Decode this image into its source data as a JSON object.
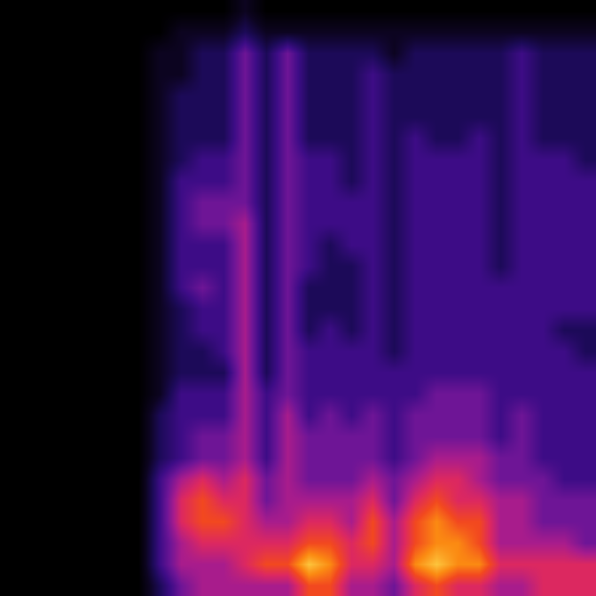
{
  "chart_data": {
    "type": "heatmap",
    "tick_labels": false,
    "zlim": [
      0,
      10
    ],
    "cells": [
      [
        0,
        0,
        0,
        0,
        0,
        0,
        0,
        0,
        0,
        0,
        0,
        0,
        0,
        0,
        0,
        0,
        0,
        0,
        0,
        0,
        0,
        0,
        0,
        0,
        0,
        0,
        0,
        0
      ],
      [
        0,
        0,
        0,
        0,
        0,
        0,
        0,
        0,
        0,
        0,
        0,
        0,
        0,
        0,
        0,
        0,
        0,
        0,
        0,
        0,
        0,
        0,
        0,
        0,
        0,
        0,
        0,
        0
      ],
      [
        0,
        0,
        0,
        0,
        0,
        0,
        0,
        0,
        0,
        0,
        0,
        0,
        0,
        0,
        0,
        0,
        0,
        0,
        0,
        0,
        0,
        0,
        0,
        0,
        0,
        0,
        0,
        0
      ],
      [
        0,
        0,
        0,
        0,
        0,
        0,
        0,
        0,
        0,
        0,
        0,
        0,
        0,
        0,
        0,
        0,
        0,
        0,
        0,
        0,
        0,
        0,
        0,
        0,
        0,
        0,
        0,
        0
      ],
      [
        0,
        0,
        0,
        0,
        0,
        0,
        0,
        0,
        0,
        0,
        0,
        0,
        0,
        0,
        0,
        0,
        0,
        0,
        0,
        0,
        0,
        0,
        0,
        0,
        0,
        0,
        0,
        0
      ],
      [
        0,
        0,
        0,
        0,
        0,
        0,
        0,
        0,
        0,
        0,
        0,
        0,
        0,
        0,
        0,
        0,
        0,
        0,
        0,
        0,
        0,
        0,
        0,
        0,
        0,
        0,
        0,
        0
      ],
      [
        0,
        0,
        0,
        0,
        0,
        0,
        0,
        0,
        0,
        0,
        0,
        0,
        0,
        0,
        0,
        0,
        0,
        0,
        0,
        0,
        0,
        0,
        0,
        0,
        0,
        0,
        0,
        0
      ],
      [
        0,
        0,
        1,
        1,
        1,
        1,
        1,
        1,
        1,
        1,
        1,
        1,
        1,
        1,
        1,
        1,
        1,
        1,
        1,
        2,
        2,
        2,
        3,
        3,
        3,
        3,
        3,
        2
      ],
      [
        0,
        1,
        1,
        1,
        2,
        2,
        2,
        2,
        3,
        3,
        3,
        3,
        3,
        3,
        2,
        2,
        2,
        2,
        3,
        3,
        3,
        3,
        5,
        6,
        6,
        5,
        5,
        4
      ],
      [
        0,
        1,
        2,
        2,
        2,
        2,
        2,
        3,
        3,
        4,
        4,
        3,
        3,
        4,
        3,
        3,
        2,
        2,
        3,
        3,
        4,
        4,
        6,
        7,
        7,
        6,
        5,
        5
      ],
      [
        0,
        1,
        2,
        2,
        2,
        2,
        2,
        3,
        3,
        4,
        4,
        3,
        3,
        3,
        3,
        3,
        3,
        2,
        3,
        3,
        4,
        4,
        5,
        6,
        7,
        6,
        5,
        5
      ],
      [
        1,
        2,
        4,
        4,
        4,
        4,
        4,
        4,
        4,
        4,
        5,
        5,
        5,
        5,
        5,
        5,
        5,
        5,
        5,
        5,
        5,
        5,
        6,
        6,
        6,
        6,
        6,
        5
      ],
      [
        0,
        1,
        2,
        2,
        2,
        2,
        2,
        2,
        2,
        2,
        2,
        2,
        2,
        2,
        2,
        2,
        2,
        2,
        3,
        3,
        3,
        3,
        4,
        4,
        5,
        6,
        7,
        5
      ],
      [
        0,
        1,
        4,
        4,
        4,
        4,
        4,
        4,
        4,
        4,
        4,
        4,
        4,
        4,
        4,
        4,
        4,
        4,
        4,
        5,
        5,
        5,
        5,
        5,
        5,
        6,
        7,
        5
      ],
      [
        0,
        1,
        2,
        2,
        2,
        2,
        2,
        3,
        3,
        3,
        3,
        3,
        3,
        2,
        2,
        2,
        3,
        3,
        3,
        3,
        4,
        4,
        4,
        5,
        6,
        7,
        9,
        7
      ],
      [
        0,
        1,
        2,
        2,
        2,
        2,
        2,
        3,
        3,
        3,
        3,
        2,
        2,
        2,
        2,
        3,
        3,
        3,
        3,
        4,
        4,
        4,
        4,
        5,
        6,
        7,
        8,
        7
      ],
      [
        0,
        1,
        2,
        2,
        2,
        2,
        2,
        2,
        2,
        3,
        3,
        3,
        2,
        2,
        2,
        2,
        3,
        3,
        3,
        3,
        4,
        4,
        4,
        5,
        5,
        6,
        6,
        5
      ],
      [
        0,
        1,
        2,
        3,
        3,
        3,
        3,
        3,
        3,
        3,
        3,
        3,
        3,
        3,
        3,
        3,
        3,
        3,
        3,
        4,
        4,
        4,
        5,
        6,
        7,
        7,
        6,
        5
      ],
      [
        0,
        1,
        1,
        2,
        2,
        2,
        2,
        2,
        2,
        2,
        2,
        2,
        2,
        2,
        2,
        2,
        2,
        3,
        3,
        3,
        3,
        3,
        4,
        4,
        5,
        5,
        5,
        4
      ],
      [
        0,
        1,
        2,
        2,
        2,
        2,
        3,
        3,
        3,
        3,
        3,
        3,
        3,
        3,
        3,
        3,
        3,
        3,
        3,
        4,
        4,
        4,
        5,
        6,
        7,
        7,
        8,
        6
      ],
      [
        0,
        1,
        2,
        2,
        2,
        2,
        2,
        3,
        3,
        3,
        3,
        3,
        3,
        3,
        3,
        3,
        3,
        3,
        4,
        4,
        4,
        5,
        6,
        7,
        8,
        8,
        9,
        7
      ],
      [
        0,
        1,
        2,
        2,
        2,
        2,
        2,
        3,
        3,
        3,
        3,
        3,
        3,
        3,
        3,
        3,
        3,
        3,
        4,
        4,
        4,
        5,
        6,
        6,
        7,
        8,
        8,
        6
      ],
      [
        0,
        1,
        2,
        2,
        2,
        2,
        3,
        3,
        3,
        3,
        3,
        3,
        3,
        3,
        3,
        3,
        3,
        3,
        4,
        4,
        4,
        5,
        5,
        6,
        7,
        7,
        8,
        6
      ],
      [
        0,
        1,
        2,
        2,
        2,
        2,
        2,
        2,
        2,
        2,
        2,
        2,
        2,
        3,
        3,
        3,
        3,
        3,
        3,
        3,
        3,
        4,
        4,
        5,
        5,
        5,
        6,
        5
      ],
      [
        0,
        1,
        3,
        3,
        3,
        3,
        3,
        3,
        3,
        3,
        3,
        3,
        3,
        3,
        3,
        3,
        3,
        3,
        3,
        4,
        4,
        4,
        4,
        5,
        5,
        5,
        6,
        5
      ],
      [
        0,
        1,
        2,
        2,
        2,
        2,
        2,
        3,
        3,
        3,
        3,
        3,
        3,
        3,
        3,
        3,
        3,
        3,
        3,
        3,
        3,
        3,
        4,
        4,
        4,
        5,
        6,
        6
      ],
      [
        0,
        1,
        2,
        2,
        2,
        2,
        2,
        3,
        3,
        3,
        3,
        3,
        3,
        3,
        3,
        2,
        3,
        3,
        3,
        3,
        3,
        3,
        3,
        4,
        4,
        5,
        6,
        6
      ],
      [
        0,
        1,
        2,
        2,
        2,
        2,
        2,
        2,
        3,
        3,
        3,
        3,
        3,
        3,
        3,
        2,
        2,
        3,
        3,
        3,
        3,
        3,
        3,
        4,
        4,
        4,
        6,
        6
      ]
    ]
  }
}
